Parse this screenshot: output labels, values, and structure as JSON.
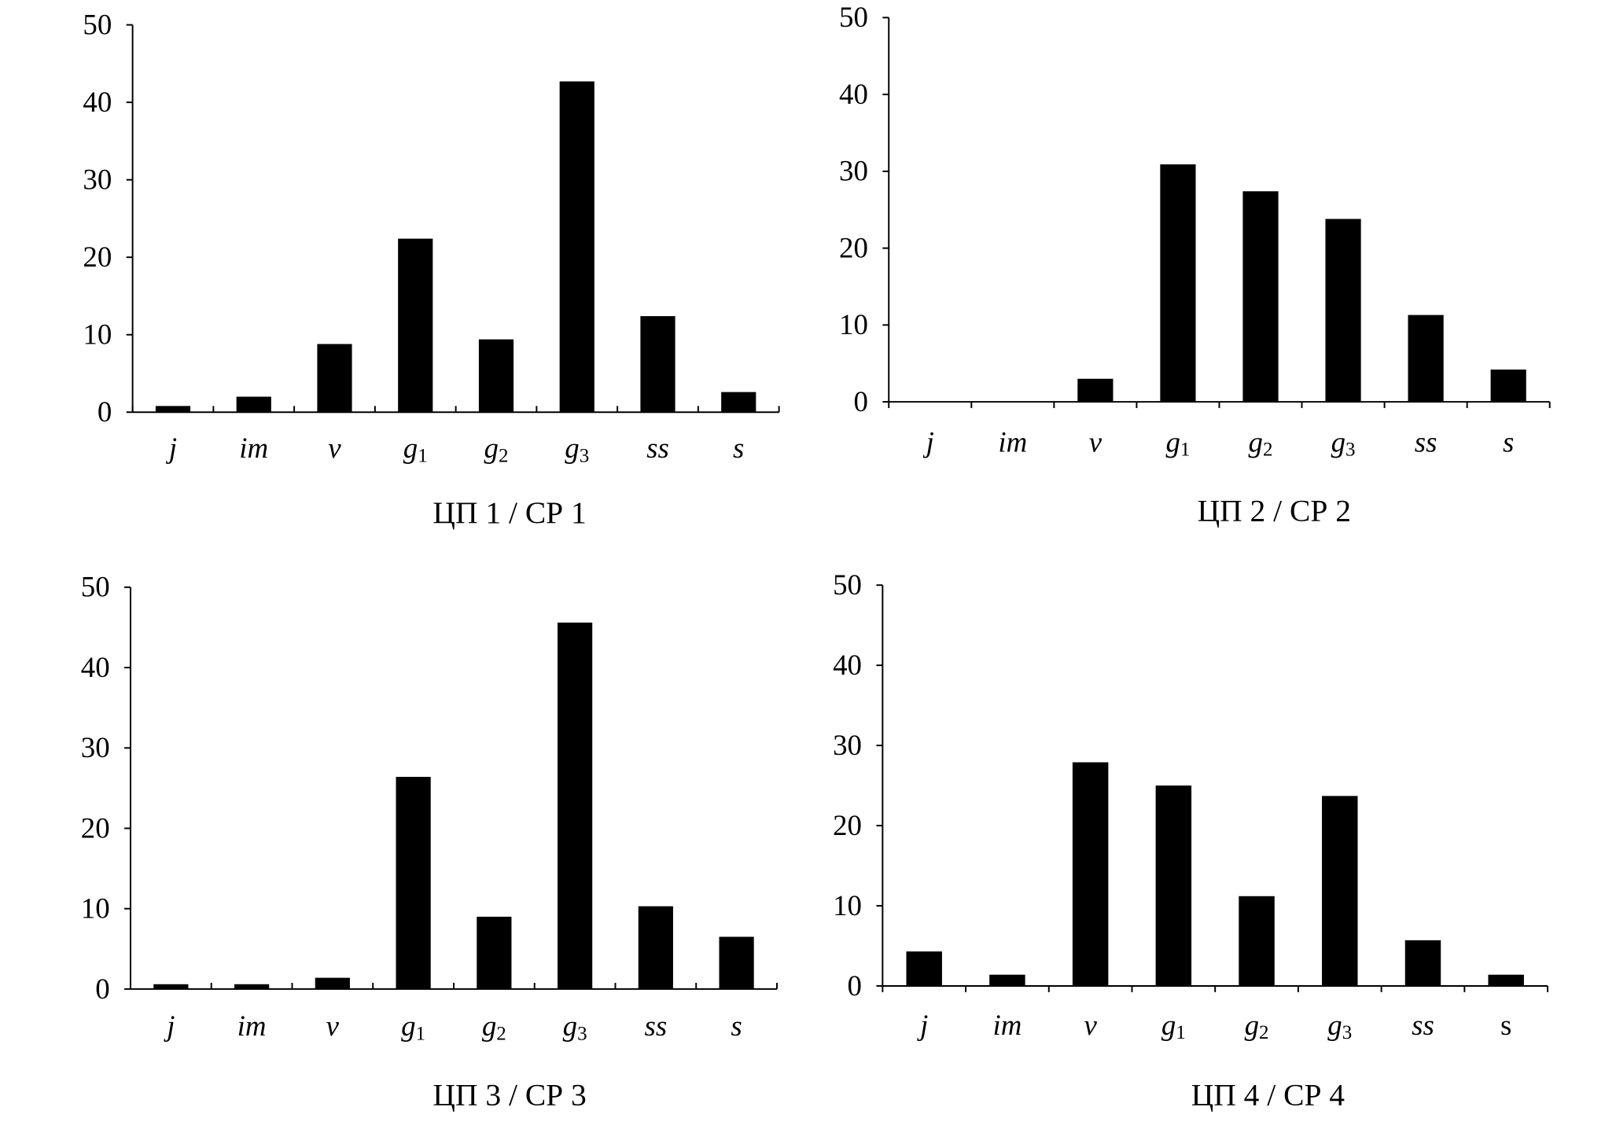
{
  "chart_data": [
    {
      "type": "bar",
      "title": "ЦП 1 / СР 1",
      "categories": [
        "j",
        "im",
        "v",
        "g1",
        "g2",
        "g3",
        "ss",
        "s"
      ],
      "values": [
        0.8,
        2.0,
        8.8,
        22.4,
        9.4,
        42.7,
        12.4,
        2.6
      ],
      "ylim": [
        0,
        50
      ],
      "yticks": [
        0,
        10,
        20,
        30,
        40,
        50
      ],
      "xlabel": "",
      "ylabel": "",
      "grid": false
    },
    {
      "type": "bar",
      "title": "ЦП 2 / СР 2",
      "categories": [
        "j",
        "im",
        "v",
        "g1",
        "g2",
        "g3",
        "ss",
        "s"
      ],
      "values": [
        0,
        0,
        3.0,
        30.9,
        27.4,
        23.8,
        11.3,
        4.2
      ],
      "ylim": [
        0,
        50
      ],
      "yticks": [
        0,
        10,
        20,
        30,
        40,
        50
      ],
      "xlabel": "",
      "ylabel": "",
      "grid": false
    },
    {
      "type": "bar",
      "title": "ЦП 3 / СР 3",
      "categories": [
        "j",
        "im",
        "v",
        "g1",
        "g2",
        "g3",
        "ss",
        "s"
      ],
      "values": [
        0.6,
        0.6,
        1.4,
        26.4,
        9.0,
        45.6,
        10.3,
        6.5
      ],
      "ylim": [
        0,
        50
      ],
      "yticks": [
        0,
        10,
        20,
        30,
        40,
        50
      ],
      "xlabel": "",
      "ylabel": "",
      "grid": false
    },
    {
      "type": "bar",
      "title": "ЦП 4 / СР 4",
      "categories": [
        "j",
        "im",
        "v",
        "g1",
        "g2",
        "g3",
        "ss",
        "s"
      ],
      "values": [
        4.3,
        1.4,
        27.9,
        25.0,
        11.2,
        23.7,
        5.7,
        1.4
      ],
      "ylim": [
        0,
        50
      ],
      "yticks": [
        0,
        10,
        20,
        30,
        40,
        50
      ],
      "xlabel": "",
      "ylabel": "",
      "grid": false
    }
  ],
  "colors": {
    "bar": "#000000",
    "axis": "#000000"
  }
}
